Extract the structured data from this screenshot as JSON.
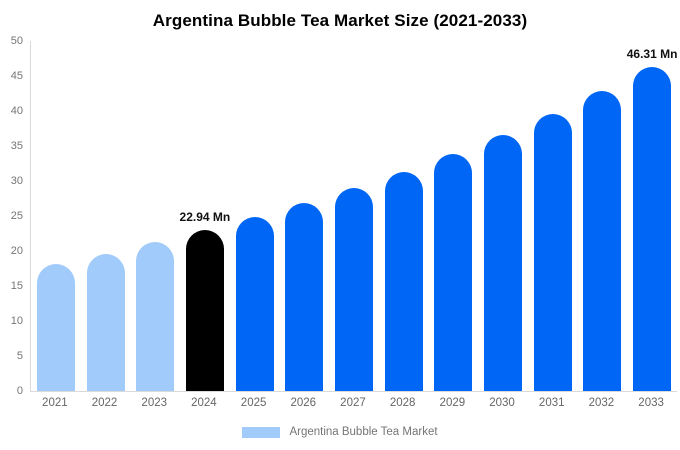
{
  "title": "Argentina Bubble Tea Market Size (2021-2033)",
  "colors": {
    "light_blue": "#A0CBFA",
    "blue": "#0066F5",
    "black": "#000000",
    "axis_line": "#d9d9d9",
    "tick_text": "#757575",
    "x_tick_text": "#666666",
    "value_label_text": "#111111",
    "background": "#ffffff"
  },
  "legend": {
    "label": "Argentina Bubble Tea Market",
    "swatch_color": "#A0CBFA"
  },
  "chart_data": {
    "type": "bar",
    "title": "Argentina Bubble Tea Market Size (2021-2033)",
    "unit": "Mn",
    "categories": [
      "2021",
      "2022",
      "2023",
      "2024",
      "2025",
      "2026",
      "2027",
      "2028",
      "2029",
      "2030",
      "2031",
      "2032",
      "2033"
    ],
    "values": [
      18.15,
      19.62,
      21.22,
      22.94,
      24.8,
      26.82,
      28.99,
      31.35,
      33.89,
      36.64,
      39.62,
      42.84,
      46.31
    ],
    "bar_colors": [
      "#A0CBFA",
      "#A0CBFA",
      "#A0CBFA",
      "#000000",
      "#0066F5",
      "#0066F5",
      "#0066F5",
      "#0066F5",
      "#0066F5",
      "#0066F5",
      "#0066F5",
      "#0066F5",
      "#0066F5"
    ],
    "value_labels": {
      "2024": "22.94 Mn",
      "2033": "46.31 Mn"
    },
    "ylim": [
      0,
      50
    ],
    "yticks": [
      0,
      5,
      10,
      15,
      20,
      25,
      30,
      35,
      40,
      45,
      50
    ],
    "grid": false,
    "legend": [
      "Argentina Bubble Tea Market"
    ],
    "legend_position": "bottom"
  }
}
